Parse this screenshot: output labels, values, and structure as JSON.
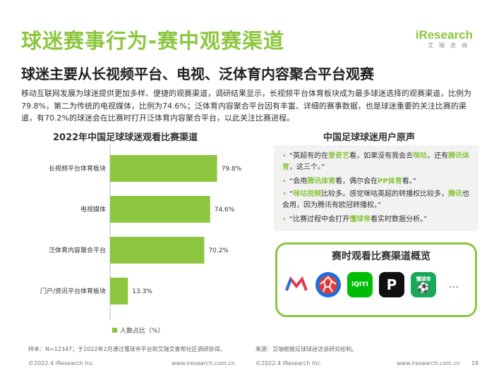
{
  "header": {
    "title": "球迷赛事行为-赛中观赛渠道",
    "subtitle": "球迷主要从长视频平台、电视、泛体育内容聚合平台观赛",
    "logo_main": "iResearch",
    "logo_sub": "艾瑞咨询"
  },
  "paragraph": "移动互联网发展为球迷提供更加多样、便捷的观赛渠道，调研结果显示，长视频平台体育板块成为最多球迷选择的观赛渠道，比例为79.8%，第二为传统的电视媒体，比例为74.6%；泛体育内容聚合平台因有丰富、详细的赛事数据，也是球迷重要的关注比赛的渠道，有70.2%的球迷会在比赛时打开泛体育内容聚合平台，以此关注比赛进程。",
  "chart_data": {
    "type": "bar",
    "orientation": "horizontal",
    "title": "2022年中国足球球迷观看比赛渠道",
    "categories": [
      "长视频平台体育板块",
      "电视媒体",
      "泛体育内容聚合平台",
      "门户/资讯平台体育板块"
    ],
    "values": [
      79.8,
      74.6,
      70.2,
      13.3
    ],
    "value_labels": [
      "79.8%",
      "74.6%",
      "70.2%",
      "13.3%"
    ],
    "legend": "人数占比（%）",
    "color": "#8cc63f",
    "xlim": [
      0,
      100
    ]
  },
  "quotes": {
    "title": "中国足球球迷用户原声",
    "items": [
      {
        "parts": [
          {
            "t": "“英超有的在"
          },
          {
            "t": "爱奇艺",
            "hl": true
          },
          {
            "t": "看，如果没有我会去"
          },
          {
            "t": "咪咕",
            "hl": true
          },
          {
            "t": "，还有"
          },
          {
            "t": "腾讯体育",
            "hl": true
          },
          {
            "t": "，这三个。”"
          }
        ]
      },
      {
        "parts": [
          {
            "t": "“会用"
          },
          {
            "t": "腾讯体育",
            "hl": true
          },
          {
            "t": "看，偶尔会在"
          },
          {
            "t": "PP体育",
            "hl": true
          },
          {
            "t": "看。”"
          }
        ]
      },
      {
        "parts": [
          {
            "t": "“"
          },
          {
            "t": "咪咕视频",
            "hl": true
          },
          {
            "t": "比较多。感觉咪咕英超的转播权比较多，"
          },
          {
            "t": "腾讯",
            "hl": true
          },
          {
            "t": "也会用，因为腾讯有欧冠转播权。”"
          }
        ]
      },
      {
        "parts": [
          {
            "t": "“比赛过程中会打开"
          },
          {
            "t": "懂球帝",
            "hl": true
          },
          {
            "t": "看实时数据分析。”"
          }
        ]
      }
    ]
  },
  "channels": {
    "title": "赛时观看比赛渠道概览",
    "icons": [
      {
        "name": "migu-app-icon",
        "glyph": "M",
        "bg": "#ffffff",
        "fg": "#e8384f"
      },
      {
        "name": "tencent-sports-app-icon",
        "glyph": "",
        "bg": "#1a6fe0",
        "fg": "#ffffff"
      },
      {
        "name": "iqiyi-app-icon",
        "glyph": "iQIYI",
        "bg": "#00be06",
        "fg": "#ffffff"
      },
      {
        "name": "pp-sports-app-icon",
        "glyph": "P",
        "bg": "#111111",
        "fg": "#ffffff"
      },
      {
        "name": "dongqiudi-app-icon",
        "glyph": "懂球帝",
        "bg": "#1aa95a",
        "fg": "#ffffff"
      }
    ],
    "more": "…"
  },
  "footnotes": {
    "left": "样本：N=12347；于2022年2月通过懂球帝平台和艾瑞艾客帮社区调研获得。",
    "right": "来源：艾瑞根据足球球迷访谈研究绘制。"
  },
  "footer": {
    "left_copyright": "©2022.4 iResearch Inc.",
    "left_url": "www.iresearch.com.cn",
    "right_copyright": "©2022.4 iResearch Inc.",
    "right_url": "www.iresearch.com.cn",
    "page": "18"
  }
}
